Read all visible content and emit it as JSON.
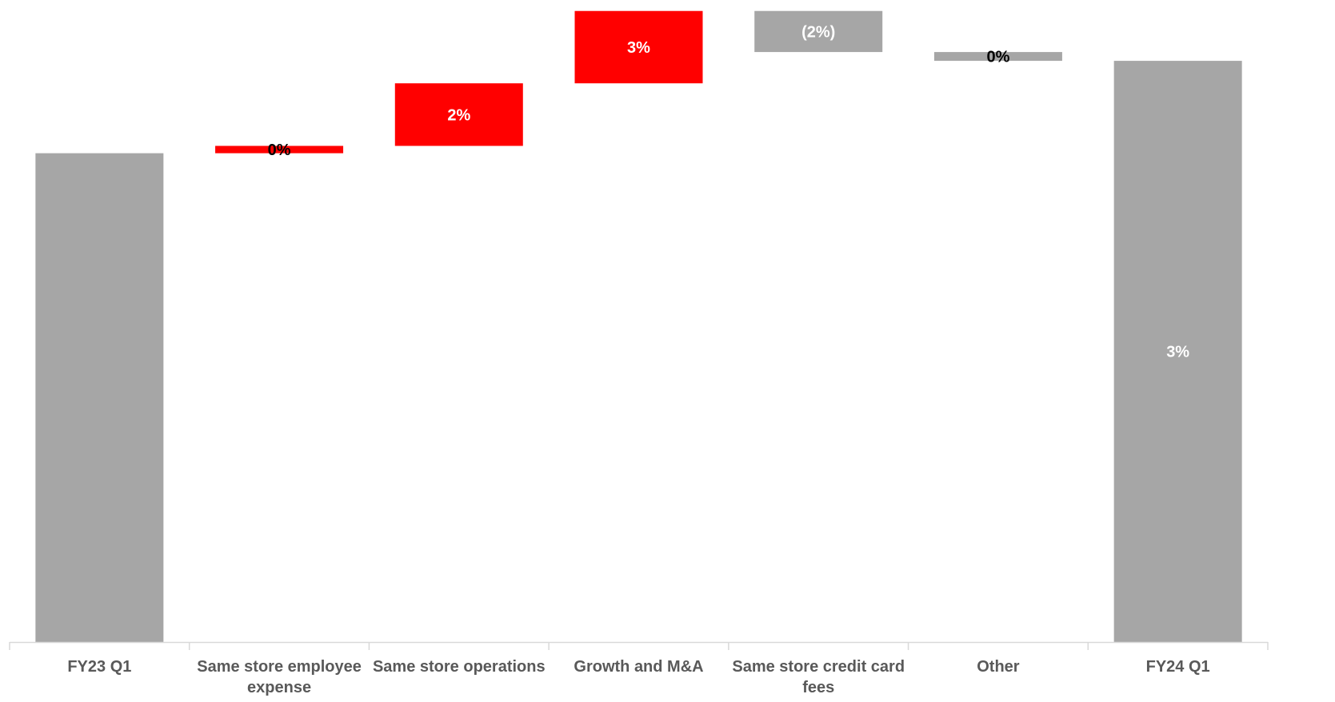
{
  "chart_data": {
    "type": "waterfall",
    "categories": [
      "FY23 Q1",
      "Same store employee expense",
      "Same store operations",
      "Growth and M&A",
      "Same store credit card fees",
      "Other",
      "FY24 Q1"
    ],
    "category_lines": [
      [
        "FY23 Q1"
      ],
      [
        "Same store employee",
        "expense"
      ],
      [
        "Same store operations"
      ],
      [
        "Growth and M&A"
      ],
      [
        "Same store credit card",
        "fees"
      ],
      [
        "Other"
      ],
      [
        "FY24 Q1"
      ]
    ],
    "bars": [
      {
        "category": "FY23 Q1",
        "kind": "total",
        "start": 0,
        "end": 100,
        "label": "",
        "color": "#a6a6a6",
        "label_color": "#ffffff"
      },
      {
        "category": "Same store employee expense",
        "kind": "delta",
        "start": 100,
        "end": 101.5,
        "label": "0%",
        "color": "#ff0000",
        "label_color": "#000000"
      },
      {
        "category": "Same store operations",
        "kind": "delta",
        "start": 101.5,
        "end": 114.3,
        "label": "2%",
        "color": "#ff0000",
        "label_color": "#ffffff"
      },
      {
        "category": "Growth and M&A",
        "kind": "delta",
        "start": 114.3,
        "end": 129.1,
        "label": "3%",
        "color": "#ff0000",
        "label_color": "#ffffff"
      },
      {
        "category": "Same store credit card fees",
        "kind": "delta",
        "start": 129.1,
        "end": 120.7,
        "label": "(2%)",
        "color": "#a6a6a6",
        "label_color": "#ffffff"
      },
      {
        "category": "Other",
        "kind": "delta",
        "start": 120.7,
        "end": 118.9,
        "label": "0%",
        "color": "#a6a6a6",
        "label_color": "#000000"
      },
      {
        "category": "FY24 Q1",
        "kind": "total",
        "start": 0,
        "end": 118.9,
        "label": "3%",
        "color": "#a6a6a6",
        "label_color": "#ffffff"
      }
    ],
    "ylim": [
      0,
      130.2
    ],
    "grid": false,
    "title": "",
    "xlabel": "",
    "ylabel": ""
  },
  "colors": {
    "increase": "#ff0000",
    "decrease": "#a6a6a6",
    "total": "#a6a6a6",
    "axis": "#d9d9d9",
    "tick_label": "#595959"
  }
}
